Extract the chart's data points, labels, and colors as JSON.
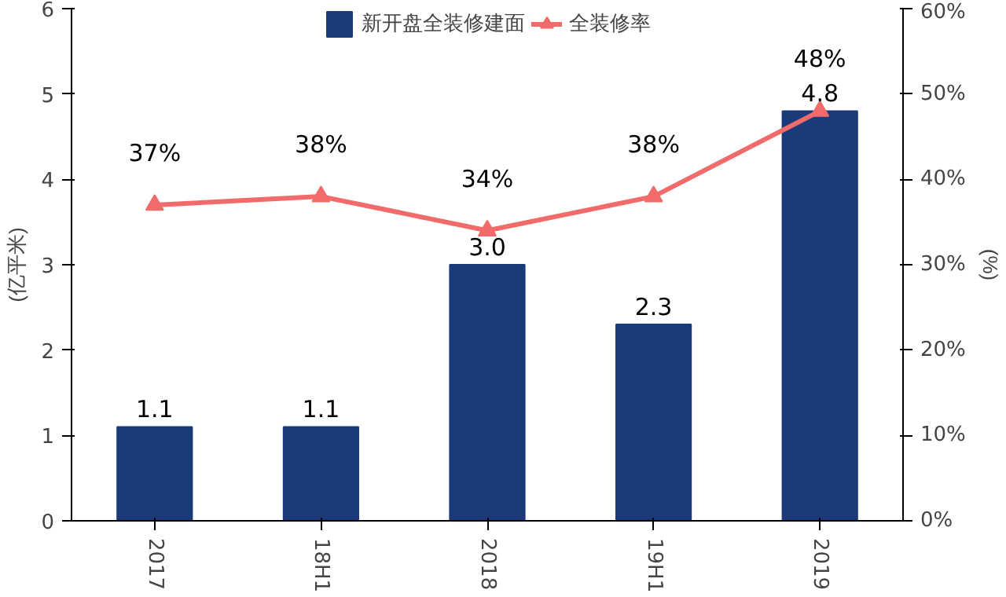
{
  "chart_data": {
    "type": "bar",
    "categories": [
      "2017",
      "18H1",
      "2018",
      "19H1",
      "2019"
    ],
    "ylabel": "(亿平米)",
    "y2label": "(%)",
    "ylim": [
      0,
      6
    ],
    "yticks": [
      0,
      1,
      2,
      3,
      4,
      5,
      6
    ],
    "y2lim": [
      0,
      60
    ],
    "y2ticks": [
      {
        "value": 0,
        "label": "0%"
      },
      {
        "value": 10,
        "label": "10%"
      },
      {
        "value": 20,
        "label": "20%"
      },
      {
        "value": 30,
        "label": "30%"
      },
      {
        "value": 40,
        "label": "40%"
      },
      {
        "value": 50,
        "label": "50%"
      },
      {
        "value": 60,
        "label": "60%"
      }
    ],
    "grid": false,
    "legend": "top",
    "series": [
      {
        "name": "新开盘全装修建面",
        "color": "#1a3a7a",
        "values": [
          1.1,
          1.1,
          3.0,
          2.3,
          4.8
        ],
        "value_labels": [
          "1.1",
          "1.1",
          "3.0",
          "2.3",
          "4.8"
        ]
      },
      {
        "name": "全装修率",
        "type": "line",
        "axis": "y2",
        "color": "#f26b6b",
        "marker": "triangle",
        "values": [
          37,
          38,
          34,
          38,
          48
        ],
        "value_labels": [
          "37%",
          "38%",
          "34%",
          "38%",
          "48%"
        ]
      }
    ]
  }
}
